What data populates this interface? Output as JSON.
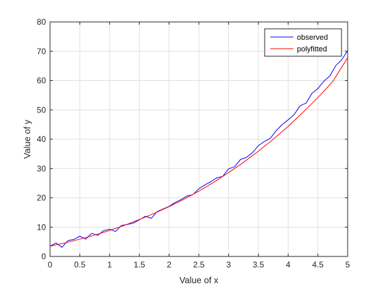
{
  "chart_data": {
    "type": "line",
    "title": "",
    "xlabel": "Value of x",
    "ylabel": "Value of y",
    "xlim": [
      0,
      5
    ],
    "ylim": [
      0,
      80
    ],
    "xticks": [
      0,
      0.5,
      1,
      1.5,
      2,
      2.5,
      3,
      3.5,
      4,
      4.5,
      5
    ],
    "xtick_labels": [
      "0",
      "0.5",
      "1",
      "1.5",
      "2",
      "2.5",
      "3",
      "3.5",
      "4",
      "4.5",
      "5"
    ],
    "yticks": [
      0,
      10,
      20,
      30,
      40,
      50,
      60,
      70,
      80
    ],
    "ytick_labels": [
      "0",
      "10",
      "20",
      "30",
      "40",
      "50",
      "60",
      "70",
      "80"
    ],
    "grid": true,
    "legend_position": "top-right",
    "series": [
      {
        "name": "observed",
        "color": "#0000ff",
        "x": [
          0,
          0.1,
          0.2,
          0.3,
          0.4,
          0.5,
          0.6,
          0.7,
          0.8,
          0.9,
          1.0,
          1.1,
          1.2,
          1.3,
          1.4,
          1.5,
          1.6,
          1.7,
          1.8,
          1.9,
          2.0,
          2.1,
          2.2,
          2.3,
          2.4,
          2.5,
          2.6,
          2.7,
          2.8,
          2.9,
          3.0,
          3.1,
          3.2,
          3.3,
          3.4,
          3.5,
          3.6,
          3.7,
          3.8,
          3.9,
          4.0,
          4.1,
          4.2,
          4.3,
          4.4,
          4.5,
          4.6,
          4.7,
          4.8,
          4.9,
          5.0
        ],
        "y": [
          3.5,
          4.6,
          3.1,
          5.4,
          5.8,
          6.9,
          5.9,
          7.9,
          7.2,
          8.8,
          9.3,
          8.5,
          10.6,
          10.9,
          11.4,
          12.5,
          13.7,
          13.0,
          15.3,
          16.2,
          17.1,
          18.4,
          19.4,
          20.6,
          21.1,
          23.1,
          24.4,
          25.5,
          26.8,
          27.3,
          29.9,
          30.6,
          33.1,
          33.8,
          35.4,
          37.8,
          39.2,
          40.3,
          42.9,
          45.0,
          46.6,
          48.4,
          51.4,
          52.3,
          55.6,
          57.3,
          59.8,
          61.6,
          65.1,
          67.1,
          70.2
        ]
      },
      {
        "name": "polyfitted",
        "color": "#ff0000",
        "x": [
          0,
          0.25,
          0.5,
          0.75,
          1.0,
          1.25,
          1.5,
          1.75,
          2.0,
          2.25,
          2.5,
          2.75,
          3.0,
          3.25,
          3.5,
          3.75,
          4.0,
          4.25,
          4.5,
          4.75,
          5.0
        ],
        "y": [
          3.5,
          4.6,
          5.9,
          7.3,
          8.9,
          10.6,
          12.6,
          14.7,
          17.0,
          19.5,
          22.3,
          25.3,
          28.6,
          32.1,
          35.9,
          40.0,
          44.4,
          49.2,
          54.2,
          59.7,
          67.8
        ]
      }
    ]
  }
}
